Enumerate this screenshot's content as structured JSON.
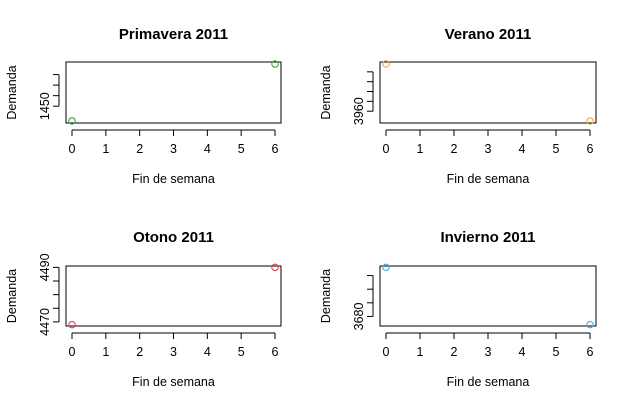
{
  "chart_data": [
    {
      "type": "scatter",
      "title": "Primavera 2011",
      "xlabel": "Fin de semana",
      "ylabel": "Demanda",
      "x": [
        0,
        6
      ],
      "y": [
        1443,
        1470
      ],
      "xlim": [
        0,
        6
      ],
      "xticks": [
        "0",
        "1",
        "2",
        "3",
        "4",
        "5",
        "6"
      ],
      "ylim": [
        1442,
        1471
      ],
      "yticks": [
        1450,
        1455,
        1460,
        1465
      ],
      "ytick_labels": [
        "1450",
        "",
        "",
        ""
      ],
      "color": "#2ca02c",
      "grid": false
    },
    {
      "type": "scatter",
      "title": "Verano 2011",
      "xlabel": "Fin de semana",
      "ylabel": "Demanda",
      "x": [
        0,
        6
      ],
      "y": [
        3984,
        3955
      ],
      "xlim": [
        0,
        6
      ],
      "xticks": [
        "0",
        "1",
        "2",
        "3",
        "4",
        "5",
        "6"
      ],
      "ylim": [
        3954,
        3985
      ],
      "yticks": [
        3960,
        3965,
        3970,
        3975,
        3980
      ],
      "ytick_labels": [
        "3960",
        "",
        "",
        "",
        ""
      ],
      "color": "#ff9933",
      "grid": false
    },
    {
      "type": "scatter",
      "title": "Otono 2011",
      "xlabel": "Fin de semana",
      "ylabel": "Demanda",
      "x": [
        0,
        6
      ],
      "y": [
        4469,
        4490
      ],
      "xlim": [
        0,
        6
      ],
      "xticks": [
        "0",
        "1",
        "2",
        "3",
        "4",
        "5",
        "6"
      ],
      "ylim": [
        4468.5,
        4490.5
      ],
      "yticks": [
        4470,
        4475,
        4480,
        4485,
        4490
      ],
      "ytick_labels": [
        "4470",
        "",
        "",
        "",
        "4490"
      ],
      "color": "#e0304a",
      "grid": false
    },
    {
      "type": "scatter",
      "title": "Invierno 2011",
      "xlabel": "Fin de semana",
      "ylabel": "Demanda",
      "x": [
        0,
        6
      ],
      "y": [
        3698,
        3677
      ],
      "xlim": [
        0,
        6
      ],
      "xticks": [
        "0",
        "1",
        "2",
        "3",
        "4",
        "5",
        "6"
      ],
      "ylim": [
        3676.5,
        3698.5
      ],
      "yticks": [
        3680,
        3685,
        3690,
        3695
      ],
      "ytick_labels": [
        "3680",
        "",
        "",
        ""
      ],
      "color": "#3aa8e0",
      "grid": false
    }
  ]
}
